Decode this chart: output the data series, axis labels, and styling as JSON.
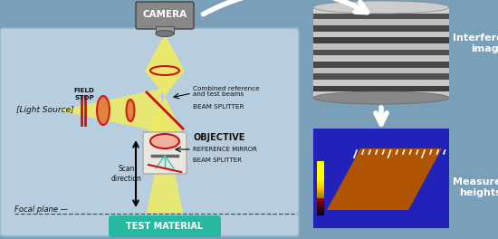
{
  "bg_color": "#7a9fb8",
  "panel_color": "#b8cede",
  "camera_label": "CAMERA",
  "light_source_label": "[Light Source]",
  "field_stop_label": "FIELD\nSTOP",
  "beam_splitter_label1": "BEAM SPLITTER",
  "combined_label": "Combined reference\nand test beams",
  "objective_label": "OBJECTIVE",
  "ref_mirror_label": "REFERENCE MIRROR",
  "beam_splitter_label2": "BEAM SPLITTER",
  "scan_label": "Scan\ndirection",
  "focal_label": "Focal plane —",
  "test_material_label": "TEST MATERIAL",
  "interference_label": "Interference\nimage",
  "measured_label": "Measured\nheights",
  "yellow_beam_color": "#f0ec60",
  "red_ellipse_color": "#cc1111",
  "lens_color": "#e07838",
  "objective_box_color": "#e8e8e0",
  "teal_color": "#28b8a0",
  "text_dark": "#111111",
  "text_white": "#ffffff"
}
